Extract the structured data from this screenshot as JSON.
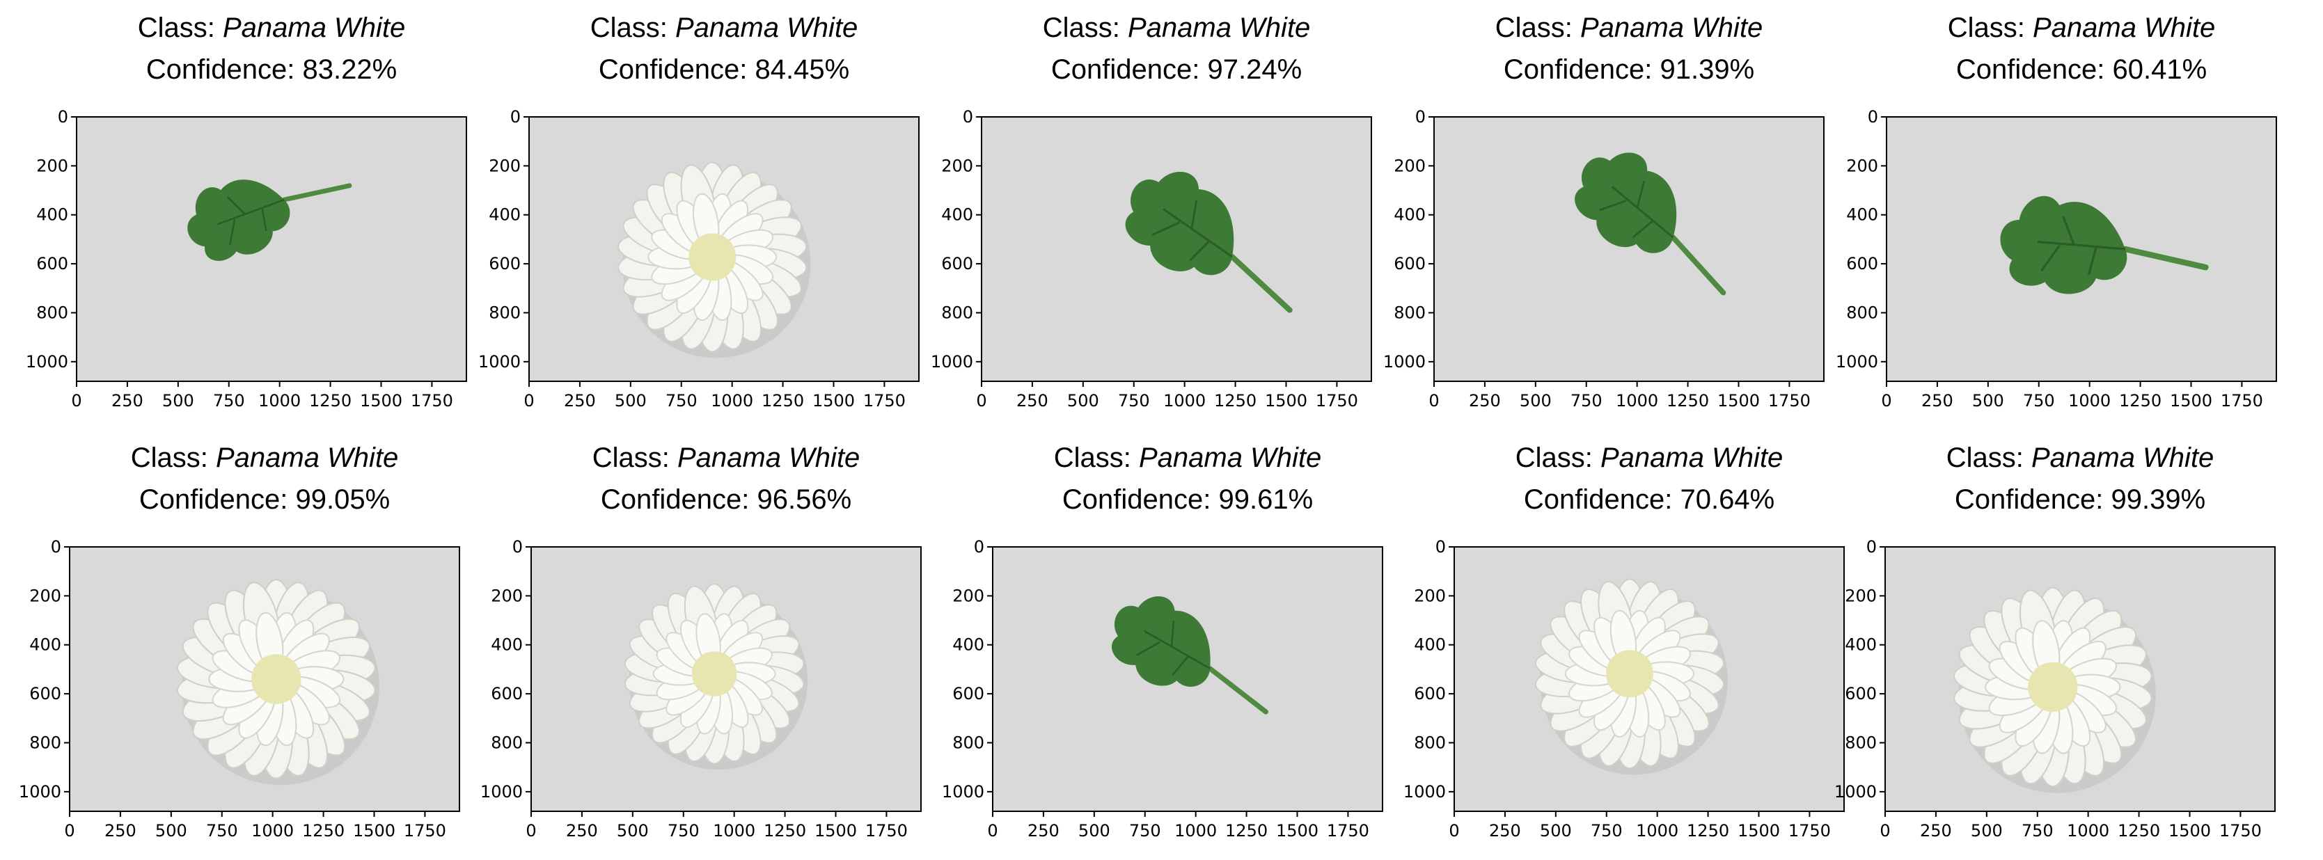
{
  "panels": [
    {
      "class_prefix": "Class:",
      "class_name": "Panama White",
      "conf_prefix": "Confidence:",
      "confidence": "83.22%",
      "subject": "leaf"
    },
    {
      "class_prefix": "Class:",
      "class_name": "Panama White",
      "conf_prefix": "Confidence:",
      "confidence": "84.45%",
      "subject": "flower"
    },
    {
      "class_prefix": "Class:",
      "class_name": "Panama White",
      "conf_prefix": "Confidence:",
      "confidence": "97.24%",
      "subject": "leaf"
    },
    {
      "class_prefix": "Class:",
      "class_name": "Panama White",
      "conf_prefix": "Confidence:",
      "confidence": "91.39%",
      "subject": "leaf"
    },
    {
      "class_prefix": "Class:",
      "class_name": "Panama White",
      "conf_prefix": "Confidence:",
      "confidence": "60.41%",
      "subject": "leaf"
    },
    {
      "class_prefix": "Class:",
      "class_name": "Panama White",
      "conf_prefix": "Confidence:",
      "confidence": "99.05%",
      "subject": "flower"
    },
    {
      "class_prefix": "Class:",
      "class_name": "Panama White",
      "conf_prefix": "Confidence:",
      "confidence": "96.56%",
      "subject": "flower"
    },
    {
      "class_prefix": "Class:",
      "class_name": "Panama White",
      "conf_prefix": "Confidence:",
      "confidence": "99.61%",
      "subject": "leaf"
    },
    {
      "class_prefix": "Class:",
      "class_name": "Panama White",
      "conf_prefix": "Confidence:",
      "confidence": "70.64%",
      "subject": "flower"
    },
    {
      "class_prefix": "Class:",
      "class_name": "Panama White",
      "conf_prefix": "Confidence:",
      "confidence": "99.39%",
      "subject": "flower"
    }
  ],
  "axes": {
    "x_ticks": [
      "0",
      "250",
      "500",
      "750",
      "1000",
      "1250",
      "1500",
      "1750"
    ],
    "y_ticks": [
      "0",
      "200",
      "400",
      "600",
      "800",
      "1000"
    ]
  },
  "colors": {
    "background": "#d9d9d9",
    "leaf": "#3d7a35",
    "flower": "#f4f4ef",
    "flower_center": "#e8e6b0"
  }
}
